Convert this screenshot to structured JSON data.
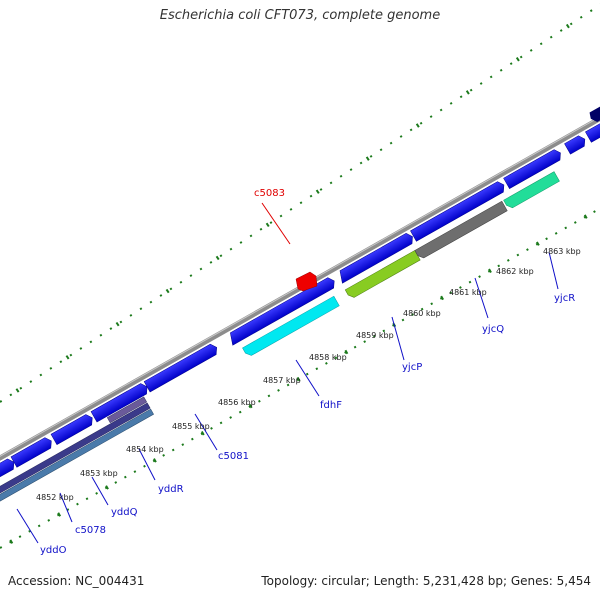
{
  "title": "Escherichia coli CFT073, complete genome",
  "footer": {
    "accession": "Accession: NC_004431",
    "summary": "Topology: circular; Length: 5,231,428 bp; Genes: 5,454"
  },
  "colors": {
    "backbone": "#8c8c8c",
    "forward_gene": "#0000ee",
    "tick": "#1c7a1c",
    "label_blue": "#1010c8",
    "label_red": "#e00000",
    "red_feature": "#ee0000"
  },
  "kbp_labels": [
    "4852 kbp",
    "4853 kbp",
    "4854 kbp",
    "4855 kbp",
    "4856 kbp",
    "4857 kbp",
    "4858 kbp",
    "4859 kbp",
    "4860 kbp",
    "4861 kbp",
    "4862 kbp",
    "4863 kbp"
  ],
  "gene_labels": [
    {
      "name": "yddO",
      "color": "blue"
    },
    {
      "name": "c5078",
      "color": "blue"
    },
    {
      "name": "yddQ",
      "color": "blue"
    },
    {
      "name": "yddR",
      "color": "blue"
    },
    {
      "name": "c5081",
      "color": "blue"
    },
    {
      "name": "fdhF",
      "color": "blue"
    },
    {
      "name": "yjcP",
      "color": "blue"
    },
    {
      "name": "yjcQ",
      "color": "blue"
    },
    {
      "name": "yjcR",
      "color": "blue"
    },
    {
      "name": "c5083",
      "color": "red"
    }
  ],
  "reverse_features": [
    {
      "name": "yddO",
      "color": "#4a7aaa"
    },
    {
      "name": "c5078",
      "color": "#3a3a8a"
    },
    {
      "name": "yddQ",
      "color": "#6a5a9a"
    },
    {
      "name": "fdhF",
      "color": "#00e8f0"
    },
    {
      "name": "yjcP",
      "color": "#88cc22"
    },
    {
      "name": "yjcQ",
      "color": "#6e6e6e"
    },
    {
      "name": "yjcR",
      "color": "#22dd99"
    }
  ]
}
